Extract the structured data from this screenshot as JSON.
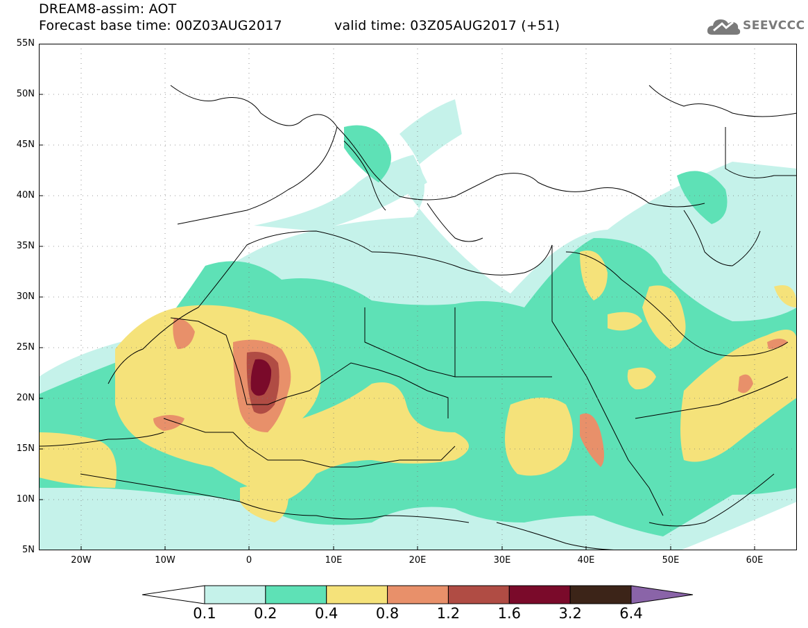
{
  "header": {
    "title_line1": "DREAM8-assim: AOT",
    "forecast_base": "Forecast base time: 00Z03AUG2017",
    "valid_time": "valid time: 03Z05AUG2017 (+51)"
  },
  "logo": {
    "text": "SEEVCCC",
    "icon": "cloud-icon"
  },
  "map": {
    "lat_labels": [
      "55N",
      "50N",
      "45N",
      "40N",
      "35N",
      "30N",
      "25N",
      "20N",
      "15N",
      "10N",
      "5N"
    ],
    "lon_labels": [
      "20W",
      "10W",
      "0",
      "10E",
      "20E",
      "30E",
      "40E",
      "50E",
      "60E"
    ],
    "lat_range": [
      5,
      55
    ],
    "lon_range": [
      -25,
      65
    ]
  },
  "colorbar": {
    "labels": [
      "0.1",
      "0.2",
      "0.4",
      "0.8",
      "1.2",
      "1.6",
      "3.2",
      "6.4"
    ],
    "colors": [
      "#ffffff",
      "#c5f2ea",
      "#5ee1b6",
      "#f5e27a",
      "#e8906a",
      "#b04c44",
      "#7a0a2a",
      "#3c2418",
      "#8a64a8"
    ]
  }
}
